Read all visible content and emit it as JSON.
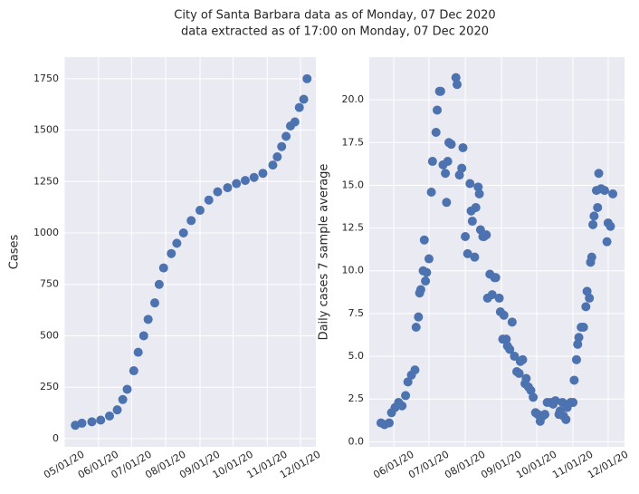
{
  "title": "City of Santa Barbara data as of Monday, 07 Dec 2020",
  "subtitle": "data extracted as of 17:00 on Monday, 07 Dec 2020",
  "chart_data": [
    {
      "type": "line",
      "ylabel": "Cases",
      "color": "#4c72b0",
      "marker": "o",
      "grid": true,
      "x": [
        "05/11/20",
        "05/17/20",
        "05/26/20",
        "06/03/20",
        "06/11/20",
        "06/18/20",
        "06/23/20",
        "06/27/20",
        "07/03/20",
        "07/07/20",
        "07/12/20",
        "07/16/20",
        "07/22/20",
        "07/26/20",
        "07/30/20",
        "08/06/20",
        "08/11/20",
        "08/17/20",
        "08/24/20",
        "09/01/20",
        "09/09/20",
        "09/17/20",
        "09/26/20",
        "10/04/20",
        "10/12/20",
        "10/20/20",
        "10/28/20",
        "11/06/20",
        "11/10/20",
        "11/14/20",
        "11/18/20",
        "11/22/20",
        "11/26/20",
        "11/30/20",
        "12/04/20",
        "12/07/20"
      ],
      "values": [
        65,
        75,
        82,
        90,
        110,
        140,
        190,
        240,
        330,
        420,
        500,
        580,
        660,
        750,
        830,
        900,
        950,
        1000,
        1060,
        1110,
        1160,
        1200,
        1220,
        1240,
        1255,
        1270,
        1290,
        1330,
        1370,
        1420,
        1470,
        1520,
        1540,
        1610,
        1650,
        1750
      ],
      "xlim": [
        "05/01/20",
        "12/15/20"
      ],
      "xticks": [
        "05/01/20",
        "06/01/20",
        "07/01/20",
        "08/01/20",
        "09/01/20",
        "10/01/20",
        "11/01/20",
        "12/01/20"
      ],
      "ylim": [
        -40,
        1855
      ],
      "yticks": [
        0,
        250,
        500,
        750,
        1000,
        1250,
        1500,
        1750
      ]
    },
    {
      "type": "line",
      "ylabel": "Daily cases 7 sample average",
      "color": "#4c72b0",
      "marker": "o",
      "grid": true,
      "x": [
        "05/21/20",
        "05/24/20",
        "05/28/20",
        "05/30/20",
        "06/02/20",
        "06/05/20",
        "06/08/20",
        "06/11/20",
        "06/13/20",
        "06/16/20",
        "06/19/20",
        "06/20/20",
        "06/22/20",
        "06/23/20",
        "06/24/20",
        "06/26/20",
        "06/27/20",
        "06/28/20",
        "06/29/20",
        "07/01/20",
        "07/03/20",
        "07/04/20",
        "07/07/20",
        "07/08/20",
        "07/10/20",
        "07/11/20",
        "07/13/20",
        "07/15/20",
        "07/16/20",
        "07/17/20",
        "07/18/20",
        "07/20/20",
        "07/24/20",
        "07/25/20",
        "07/27/20",
        "07/29/20",
        "07/30/20",
        "08/01/20",
        "08/03/20",
        "08/05/20",
        "08/06/20",
        "08/07/20",
        "08/09/20",
        "08/10/20",
        "08/12/20",
        "08/13/20",
        "08/14/20",
        "08/16/20",
        "08/17/20",
        "08/19/20",
        "08/20/20",
        "08/22/20",
        "08/24/20",
        "08/26/20",
        "08/27/20",
        "08/30/20",
        "08/31/20",
        "09/02/20",
        "09/03/20",
        "09/05/20",
        "09/06/20",
        "09/08/20",
        "09/10/20",
        "09/12/20",
        "09/14/20",
        "09/16/20",
        "09/17/20",
        "09/19/20",
        "09/21/20",
        "09/22/20",
        "09/24/20",
        "09/26/20",
        "09/28/20",
        "09/30/20",
        "10/02/20",
        "10/04/20",
        "10/06/20",
        "10/08/20",
        "10/10/20",
        "10/13/20",
        "10/15/20",
        "10/17/20",
        "10/20/20",
        "10/21/20",
        "10/23/20",
        "10/24/20",
        "10/26/20",
        "10/27/20",
        "10/30/20",
        "11/01/20",
        "11/02/20",
        "11/04/20",
        "11/05/20",
        "11/06/20",
        "11/08/20",
        "11/10/20",
        "11/12/20",
        "11/13/20",
        "11/15/20",
        "11/16/20",
        "11/17/20",
        "11/18/20",
        "11/19/20",
        "11/21/20",
        "11/22/20",
        "11/23/20",
        "11/25/20",
        "11/28/20",
        "11/30/20",
        "12/01/20",
        "12/03/20",
        "12/05/20"
      ],
      "values": [
        1.1,
        1.0,
        1.1,
        1.7,
        2.0,
        2.3,
        2.1,
        2.7,
        3.5,
        3.9,
        4.2,
        6.7,
        7.3,
        8.7,
        8.9,
        10.0,
        11.8,
        9.4,
        9.9,
        10.7,
        14.6,
        16.4,
        18.1,
        19.4,
        20.5,
        20.5,
        16.2,
        15.7,
        14.0,
        16.4,
        17.5,
        17.4,
        21.3,
        20.9,
        15.6,
        16.0,
        17.2,
        12.0,
        11.0,
        15.1,
        13.5,
        12.9,
        10.8,
        13.7,
        14.9,
        14.5,
        12.4,
        12.0,
        12.0,
        12.1,
        8.4,
        9.8,
        8.6,
        9.6,
        9.6,
        8.4,
        7.6,
        6.0,
        7.4,
        6.0,
        5.6,
        5.4,
        7.0,
        5.0,
        4.1,
        4.0,
        4.7,
        4.8,
        3.4,
        3.7,
        3.2,
        3.0,
        2.6,
        1.7,
        1.6,
        1.2,
        1.5,
        1.6,
        2.3,
        2.3,
        2.2,
        2.4,
        1.6,
        1.8,
        2.3,
        1.5,
        1.3,
        2.0,
        2.3,
        2.3,
        3.6,
        4.8,
        5.7,
        6.1,
        6.7,
        6.7,
        7.9,
        8.8,
        8.4,
        10.5,
        10.8,
        12.7,
        13.2,
        14.7,
        13.7,
        15.7,
        14.8,
        14.7,
        11.7,
        12.8,
        12.6,
        14.5
      ],
      "xlim": [
        "05/11/20",
        "12/15/20"
      ],
      "xticks": [
        "06/01/20",
        "07/01/20",
        "08/01/20",
        "09/01/20",
        "10/01/20",
        "11/01/20",
        "12/01/20"
      ],
      "ylim": [
        -0.3,
        22.5
      ],
      "yticks": [
        {
          "value": 0,
          "label": "0.0"
        },
        2.5,
        {
          "value": 5,
          "label": "5.0"
        },
        7.5,
        {
          "value": 10,
          "label": "10.0"
        },
        12.5,
        {
          "value": 15,
          "label": "15.0"
        },
        17.5,
        {
          "value": 20,
          "label": "20.0"
        }
      ]
    }
  ]
}
